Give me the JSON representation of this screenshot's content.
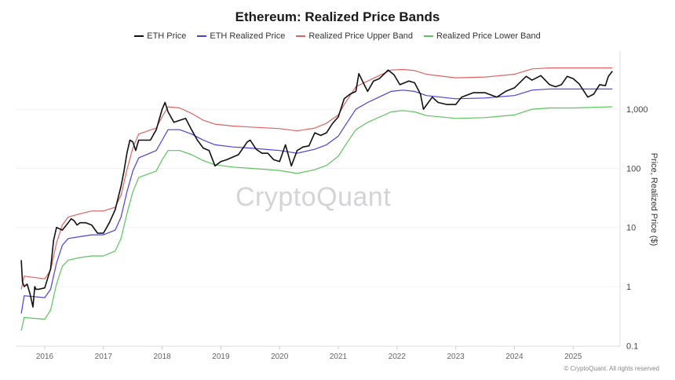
{
  "chart_data": {
    "type": "line",
    "title": "Ethereum: Realized Price Bands",
    "ylabel": "Price, Realized Price ($)",
    "yscale": "log",
    "ylim": [
      0.1,
      10000
    ],
    "yticks": [
      "0.1",
      "1",
      "10",
      "100",
      "1,000"
    ],
    "xticks": [
      "2016",
      "2017",
      "2018",
      "2019",
      "2020",
      "2021",
      "2022",
      "2023",
      "2024",
      "2025"
    ],
    "grid": true,
    "legend_position": "top",
    "watermark": "CryptoQuant",
    "footer": "© CryptoQuant. All rights reserved",
    "series": [
      {
        "name": "ETH Price",
        "color": "#111111",
        "x": [
          2015.6,
          2015.62,
          2015.65,
          2015.7,
          2015.75,
          2015.8,
          2015.83,
          2015.85,
          2015.9,
          2016.0,
          2016.1,
          2016.15,
          2016.2,
          2016.3,
          2016.4,
          2016.45,
          2016.5,
          2016.55,
          2016.6,
          2016.7,
          2016.8,
          2016.9,
          2017.0,
          2017.1,
          2017.2,
          2017.3,
          2017.35,
          2017.4,
          2017.45,
          2017.5,
          2017.55,
          2017.6,
          2017.7,
          2017.8,
          2017.9,
          2018.0,
          2018.05,
          2018.1,
          2018.2,
          2018.3,
          2018.4,
          2018.5,
          2018.6,
          2018.7,
          2018.8,
          2018.9,
          2019.0,
          2019.1,
          2019.3,
          2019.45,
          2019.5,
          2019.6,
          2019.7,
          2019.8,
          2019.9,
          2020.0,
          2020.1,
          2020.2,
          2020.3,
          2020.4,
          2020.5,
          2020.6,
          2020.7,
          2020.8,
          2020.9,
          2021.0,
          2021.1,
          2021.2,
          2021.3,
          2021.35,
          2021.45,
          2021.5,
          2021.6,
          2021.7,
          2021.85,
          2021.95,
          2022.05,
          2022.2,
          2022.3,
          2022.4,
          2022.45,
          2022.6,
          2022.7,
          2022.85,
          2023.0,
          2023.1,
          2023.3,
          2023.5,
          2023.7,
          2023.85,
          2024.0,
          2024.2,
          2024.3,
          2024.45,
          2024.6,
          2024.7,
          2024.8,
          2024.9,
          2025.0,
          2025.1,
          2025.25,
          2025.35,
          2025.45,
          2025.55,
          2025.6,
          2025.67
        ],
        "y": [
          2.8,
          1.2,
          1.0,
          1.1,
          0.75,
          0.45,
          1.0,
          0.9,
          0.9,
          0.95,
          2,
          6,
          10,
          9,
          12,
          14,
          13,
          11,
          12,
          12,
          11,
          8,
          8,
          12,
          20,
          50,
          90,
          180,
          300,
          280,
          200,
          300,
          300,
          300,
          450,
          1000,
          1300,
          900,
          600,
          650,
          700,
          450,
          300,
          220,
          200,
          110,
          130,
          140,
          170,
          280,
          300,
          210,
          180,
          180,
          140,
          130,
          250,
          110,
          200,
          230,
          240,
          400,
          360,
          400,
          570,
          740,
          1500,
          1800,
          2000,
          4000,
          2500,
          2000,
          3000,
          3300,
          4600,
          3800,
          2600,
          3000,
          2800,
          1800,
          1000,
          1600,
          1300,
          1200,
          1200,
          1600,
          1900,
          1900,
          1600,
          2000,
          2300,
          3600,
          3100,
          3700,
          2600,
          2400,
          2600,
          3600,
          3300,
          2700,
          1600,
          1800,
          2600,
          2500,
          3600,
          4400
        ]
      },
      {
        "name": "ETH Realized Price",
        "color": "#4b3fe0",
        "x": [
          2015.6,
          2015.65,
          2016.0,
          2016.1,
          2016.2,
          2016.3,
          2016.4,
          2016.6,
          2016.8,
          2017.0,
          2017.2,
          2017.3,
          2017.4,
          2017.5,
          2017.6,
          2017.9,
          2018.0,
          2018.1,
          2018.3,
          2018.5,
          2018.7,
          2018.9,
          2019.2,
          2019.5,
          2020.0,
          2020.3,
          2020.6,
          2020.8,
          2021.0,
          2021.1,
          2021.3,
          2021.5,
          2021.9,
          2022.1,
          2022.3,
          2022.5,
          2023.0,
          2023.5,
          2024.0,
          2024.3,
          2024.6,
          2025.0,
          2025.67
        ],
        "y": [
          0.35,
          0.7,
          0.65,
          0.9,
          2.5,
          5,
          6.5,
          7,
          7.5,
          7.5,
          9,
          15,
          40,
          90,
          150,
          200,
          300,
          450,
          450,
          380,
          300,
          250,
          230,
          220,
          200,
          180,
          210,
          250,
          350,
          500,
          1000,
          1300,
          2000,
          2100,
          2000,
          1700,
          1500,
          1550,
          1700,
          2100,
          2200,
          2200,
          2200
        ]
      },
      {
        "name": "Realized Price Upper Band",
        "color": "#e06262",
        "x": [
          2015.6,
          2015.65,
          2016.0,
          2016.1,
          2016.2,
          2016.3,
          2016.4,
          2016.6,
          2016.8,
          2017.0,
          2017.2,
          2017.3,
          2017.4,
          2017.5,
          2017.6,
          2017.9,
          2018.0,
          2018.1,
          2018.3,
          2018.5,
          2018.7,
          2018.9,
          2019.2,
          2019.5,
          2020.0,
          2020.3,
          2020.6,
          2020.8,
          2021.0,
          2021.1,
          2021.3,
          2021.5,
          2021.9,
          2022.1,
          2022.3,
          2022.5,
          2023.0,
          2023.5,
          2024.0,
          2024.3,
          2024.6,
          2025.0,
          2025.67
        ],
        "y": [
          0.9,
          1.5,
          1.35,
          1.9,
          5.5,
          11,
          15,
          17,
          19,
          19,
          22,
          35,
          95,
          220,
          380,
          480,
          750,
          1100,
          1050,
          850,
          650,
          560,
          520,
          500,
          470,
          430,
          480,
          580,
          800,
          1200,
          2400,
          3000,
          4600,
          4700,
          4500,
          3900,
          3400,
          3500,
          3900,
          4800,
          5000,
          5000,
          5000
        ]
      },
      {
        "name": "Realized Price Lower Band",
        "color": "#5cc45c",
        "x": [
          2015.6,
          2015.65,
          2016.0,
          2016.1,
          2016.2,
          2016.3,
          2016.4,
          2016.6,
          2016.8,
          2017.0,
          2017.2,
          2017.3,
          2017.4,
          2017.5,
          2017.6,
          2017.9,
          2018.0,
          2018.1,
          2018.3,
          2018.5,
          2018.7,
          2018.9,
          2019.2,
          2019.5,
          2020.0,
          2020.3,
          2020.6,
          2020.8,
          2021.0,
          2021.1,
          2021.3,
          2021.5,
          2021.9,
          2022.1,
          2022.3,
          2022.5,
          2023.0,
          2023.5,
          2024.0,
          2024.3,
          2024.6,
          2025.0,
          2025.67
        ],
        "y": [
          0.18,
          0.3,
          0.28,
          0.4,
          1.1,
          2.2,
          2.8,
          3.1,
          3.3,
          3.3,
          4,
          6.5,
          17,
          40,
          70,
          90,
          140,
          200,
          200,
          170,
          135,
          115,
          105,
          100,
          92,
          82,
          95,
          112,
          160,
          230,
          450,
          600,
          900,
          950,
          900,
          780,
          700,
          720,
          800,
          1000,
          1050,
          1050,
          1100
        ]
      }
    ]
  }
}
